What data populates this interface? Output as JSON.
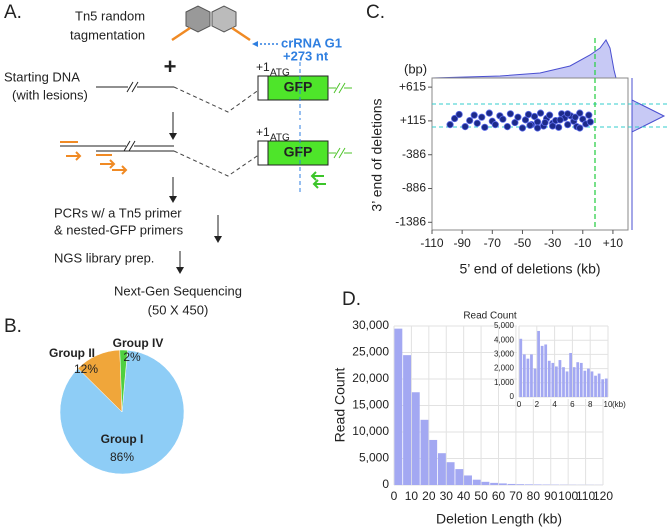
{
  "panel_labels": [
    "A.",
    "B.",
    "C.",
    "D."
  ],
  "diagram": {
    "tn5": [
      "Tn5 random",
      "tagmentation"
    ],
    "crrna": [
      "crRNA G1",
      "+273 nt"
    ],
    "plus": "+",
    "starting_dna": [
      "Starting DNA",
      "(with lesions)"
    ],
    "gfp_top": {
      "pos": "+1",
      "atg": "ATG",
      "gene": "GFP"
    },
    "gfp_bottom": {
      "pos": "+1",
      "atg": "ATG",
      "gene": "GFP"
    },
    "steps": [
      "PCRs w/ a Tn5 primer",
      "& nested-GFP primers",
      "NGS library prep.",
      "Next-Gen Sequencing",
      "(50 X 450)"
    ]
  },
  "chart_data": [
    {
      "type": "pie",
      "categories": [
        "Group I",
        "Group II",
        "Group IV"
      ],
      "values": [
        86,
        12,
        2
      ],
      "value_labels": [
        "86%",
        "12%",
        "2%"
      ],
      "colors": [
        "#8ecdf6",
        "#f0a63a",
        "#4fcf3f"
      ]
    },
    {
      "type": "scatter",
      "unit_label": "(bp)",
      "x_label": "5’ end of deletions (kb)",
      "y_label": "3’ end of deletions",
      "x": [
        -98,
        -95,
        -92,
        -88,
        -85,
        -82,
        -80,
        -77,
        -75,
        -72,
        -70,
        -68,
        -65,
        -63,
        -60,
        -58,
        -55,
        -53,
        -50,
        -48,
        -46,
        -44,
        -42,
        -40,
        -38,
        -36,
        -34,
        -32,
        -30,
        -28,
        -26,
        -24,
        -22,
        -20,
        -18,
        -16,
        -14,
        -12,
        -10,
        -8,
        -6,
        -5,
        -40,
        -30,
        -20,
        -15,
        -25,
        -35,
        -45,
        -12
      ],
      "values": [
        60,
        150,
        210,
        30,
        120,
        200,
        80,
        170,
        20,
        230,
        110,
        60,
        190,
        140,
        30,
        220,
        90,
        170,
        10,
        130,
        210,
        60,
        180,
        100,
        230,
        40,
        150,
        200,
        80,
        120,
        20,
        220,
        160,
        60,
        190,
        110,
        30,
        230,
        140,
        70,
        200,
        100,
        10,
        40,
        220,
        170,
        130,
        90,
        50,
        10
      ],
      "color": "#1c2a8a",
      "xlim": [
        -110,
        20
      ],
      "ylim": [
        -1500,
        750
      ],
      "xticks": [
        -110,
        -90,
        -70,
        -50,
        -30,
        -10,
        {
          "value": 10,
          "label": "+10"
        }
      ],
      "yticks": [
        -1386,
        -886,
        -386,
        {
          "value": 115,
          "label": "+115"
        },
        {
          "value": 615,
          "label": "+615"
        }
      ]
    },
    {
      "type": "histogram",
      "x_label": "Deletion Length (kb)",
      "y_label": "Read Count",
      "color": "#a3a8f2",
      "grid": true,
      "bins": [
        0,
        5,
        10,
        15,
        20,
        25,
        30,
        35,
        40,
        45,
        50,
        55,
        60,
        65,
        70,
        75,
        80,
        85,
        90,
        95,
        100,
        105,
        110,
        115,
        120
      ],
      "values": [
        29500,
        24500,
        17500,
        12300,
        8500,
        6000,
        4300,
        3000,
        1800,
        1000,
        600,
        400,
        300,
        200,
        150,
        120,
        100,
        80,
        60,
        50,
        40,
        30,
        30,
        20
      ],
      "xlim": [
        0,
        120
      ],
      "ylim": [
        0,
        30000
      ],
      "xticks": [
        0,
        10,
        20,
        30,
        40,
        50,
        60,
        70,
        80,
        90,
        100,
        110,
        120
      ],
      "yticks": [
        0,
        {
          "value": 5000,
          "label": "5,000"
        },
        {
          "value": 10000,
          "label": "10,000"
        },
        {
          "value": 15000,
          "label": "15,000"
        },
        {
          "value": 20000,
          "label": "20,000"
        },
        {
          "value": 25000,
          "label": "25,000"
        },
        {
          "value": 30000,
          "label": "30,000"
        }
      ]
    },
    {
      "type": "histogram",
      "title": "Read Count",
      "x_unit": "(kb)",
      "color": "#a3a8f2",
      "grid": true,
      "bins": [
        0,
        0.4,
        0.8,
        1.2,
        1.6,
        2,
        2.4,
        2.8,
        3.2,
        3.6,
        4,
        4.4,
        4.8,
        5.2,
        5.6,
        6,
        6.4,
        6.8,
        7.2,
        7.6,
        8,
        8.4,
        8.8,
        9.2,
        9.6,
        10
      ],
      "values": [
        4100,
        3000,
        2700,
        3000,
        2000,
        4650,
        3600,
        3700,
        2550,
        2400,
        2150,
        2600,
        2100,
        1800,
        3100,
        2100,
        2450,
        2400,
        1850,
        2000,
        1800,
        1500,
        1650,
        1250,
        1300
      ],
      "xlim": [
        0,
        10
      ],
      "ylim": [
        0,
        5000
      ],
      "xticks": [
        0,
        2,
        4,
        6,
        8,
        10
      ],
      "yticks": [
        0,
        {
          "value": 1000,
          "label": "1,000"
        },
        {
          "value": 2000,
          "label": "2,000"
        },
        {
          "value": 3000,
          "label": "3,000"
        },
        {
          "value": 4000,
          "label": "4,000"
        },
        {
          "value": 5000,
          "label": "5,000"
        }
      ]
    }
  ]
}
